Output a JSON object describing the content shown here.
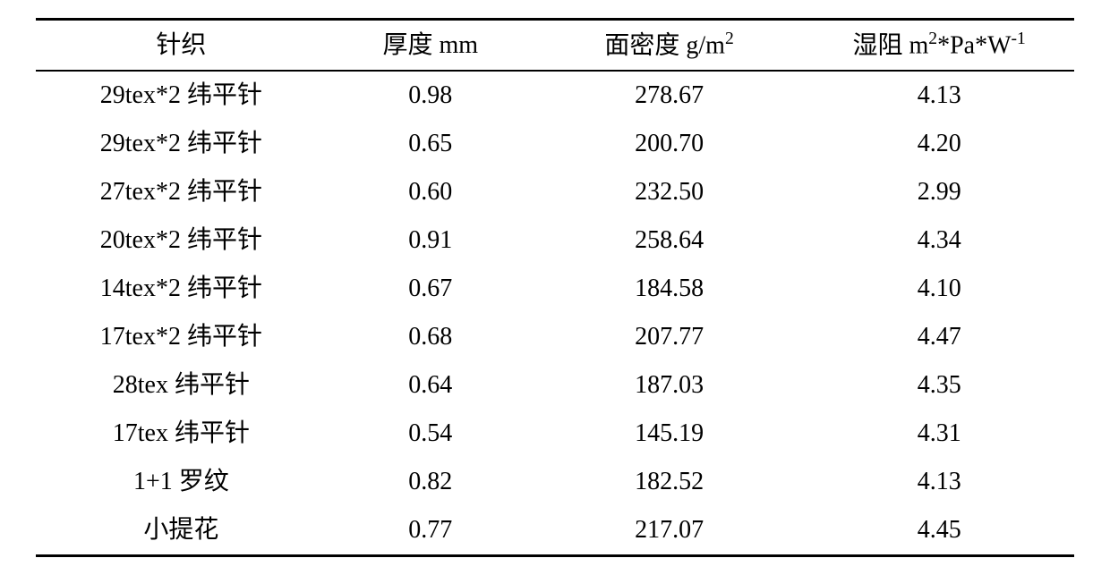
{
  "table": {
    "columns": [
      {
        "label": "针织"
      },
      {
        "label_html": "厚度 mm"
      },
      {
        "label_html": "面密度 g/m<sup>2</sup>"
      },
      {
        "label_html": "湿阻 m<sup>2</sup>*Pa*W<sup>-1</sup>"
      }
    ],
    "rows": [
      [
        "29tex*2 纬平针",
        "0.98",
        "278.67",
        "4.13"
      ],
      [
        "29tex*2 纬平针",
        "0.65",
        "200.70",
        "4.20"
      ],
      [
        "27tex*2 纬平针",
        "0.60",
        "232.50",
        "2.99"
      ],
      [
        "20tex*2 纬平针",
        "0.91",
        "258.64",
        "4.34"
      ],
      [
        "14tex*2 纬平针",
        "0.67",
        "184.58",
        "4.10"
      ],
      [
        "17tex*2 纬平针",
        "0.68",
        "207.77",
        "4.47"
      ],
      [
        "28tex 纬平针",
        "0.64",
        "187.03",
        "4.35"
      ],
      [
        "17tex 纬平针",
        "0.54",
        "145.19",
        "4.31"
      ],
      [
        "1+1 罗纹",
        "0.82",
        "182.52",
        "4.13"
      ],
      [
        "小提花",
        "0.77",
        "217.07",
        "4.45"
      ]
    ],
    "styling": {
      "border_top_width": 3,
      "header_border_bottom_width": 2,
      "border_bottom_width": 3,
      "border_color": "#000000",
      "background_color": "#ffffff",
      "font_family": "Times New Roman, SimSun, serif",
      "cell_fontsize": 28,
      "text_align": "center",
      "column_widths_pct": [
        28,
        20,
        26,
        26
      ]
    }
  }
}
